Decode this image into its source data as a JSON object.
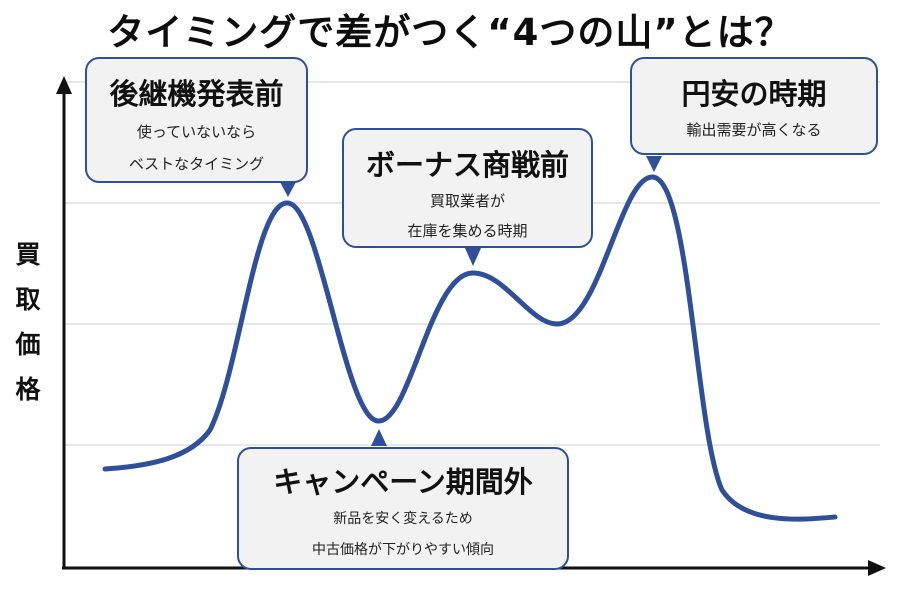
{
  "title": "タイミングで差がつく“4つの山”とは？",
  "y_axis_label": [
    "買",
    "取",
    "価",
    "格"
  ],
  "callouts": [
    {
      "heading": "後継機発表前",
      "lines": [
        "使っていないなら",
        "ベストなタイミング"
      ]
    },
    {
      "heading": "ボーナス商戦前",
      "lines": [
        "買取業者が",
        "在庫を集める時期"
      ]
    },
    {
      "heading": "円安の時期",
      "lines": [
        "輸出需要が高くなる"
      ]
    },
    {
      "heading": "キャンペーン期間外",
      "lines": [
        "新品を安く変えるため",
        "中古価格が下がりやすい傾向"
      ]
    }
  ],
  "colors": {
    "curve": "#2f4f9a",
    "callout_border": "#2f4f9a",
    "callout_fill": "#f2f2f2",
    "axis": "#111111",
    "gridline": "#cfcfcf"
  }
}
